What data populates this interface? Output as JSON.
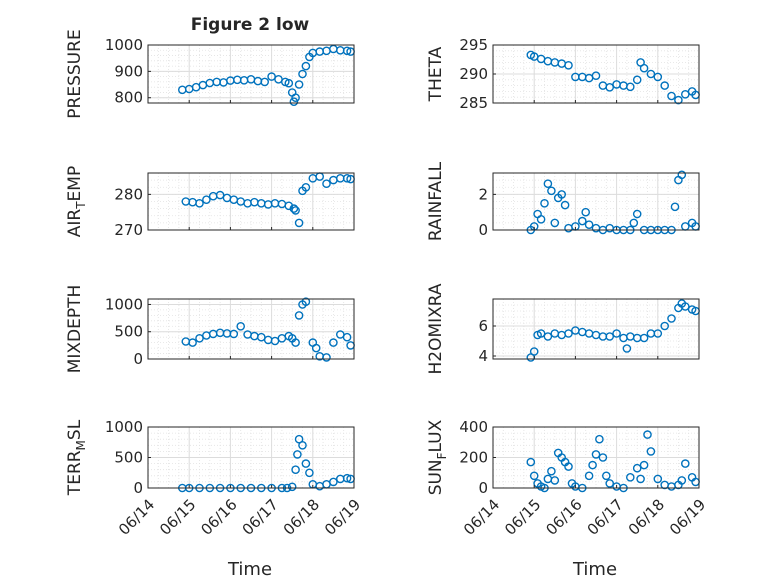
{
  "figure": {
    "title": "Figure 2 low",
    "xlabel": "Time",
    "date_ticks": [
      "06/14",
      "06/15",
      "06/16",
      "06/17",
      "06/18",
      "06/19"
    ]
  },
  "chart_data": [
    {
      "type": "scatter",
      "ylabel": "PRESSURE",
      "ylim": [
        780,
        1000
      ],
      "yticks": [
        800,
        900,
        1000
      ],
      "grid": true,
      "xlim": [
        "2021-06-14",
        "2021-06-19"
      ],
      "x": [
        "06-14 20:00",
        "06-15 00:00",
        "06-15 04:00",
        "06-15 08:00",
        "06-15 12:00",
        "06-15 16:00",
        "06-15 20:00",
        "06-16 00:00",
        "06-16 04:00",
        "06-16 08:00",
        "06-16 12:00",
        "06-16 16:00",
        "06-16 20:00",
        "06-17 00:00",
        "06-17 04:00",
        "06-17 08:00",
        "06-17 10:00",
        "06-17 12:00",
        "06-17 13:00",
        "06-17 14:00",
        "06-17 16:00",
        "06-17 18:00",
        "06-17 20:00",
        "06-17 22:00",
        "06-18 00:00",
        "06-18 04:00",
        "06-18 08:00",
        "06-18 12:00",
        "06-18 16:00",
        "06-18 20:00",
        "06-18 22:00"
      ],
      "y": [
        830,
        833,
        840,
        848,
        856,
        860,
        858,
        865,
        868,
        866,
        870,
        863,
        860,
        880,
        870,
        860,
        855,
        820,
        785,
        800,
        850,
        890,
        920,
        955,
        970,
        975,
        978,
        985,
        980,
        978,
        975
      ]
    },
    {
      "type": "scatter",
      "ylabel": "THETA",
      "ylim": [
        285,
        295
      ],
      "yticks": [
        285,
        290,
        295
      ],
      "grid": true,
      "x": [
        "06-14 22:00",
        "06-15 00:00",
        "06-15 04:00",
        "06-15 08:00",
        "06-15 12:00",
        "06-15 16:00",
        "06-15 20:00",
        "06-16 00:00",
        "06-16 04:00",
        "06-16 08:00",
        "06-16 12:00",
        "06-16 16:00",
        "06-16 20:00",
        "06-17 00:00",
        "06-17 04:00",
        "06-17 08:00",
        "06-17 12:00",
        "06-17 14:00",
        "06-17 16:00",
        "06-17 20:00",
        "06-18 00:00",
        "06-18 04:00",
        "06-18 08:00",
        "06-18 12:00",
        "06-18 16:00",
        "06-18 20:00",
        "06-18 22:00"
      ],
      "y": [
        293.3,
        293,
        292.6,
        292.2,
        292,
        291.8,
        291.5,
        289.5,
        289.5,
        289.3,
        289.7,
        288,
        287.7,
        288.2,
        288,
        287.8,
        289,
        292,
        291,
        290,
        289.5,
        288,
        286.2,
        285.5,
        286.5,
        287,
        286.4
      ]
    },
    {
      "type": "scatter",
      "ylabel": "AIR",
      "ylabel_sub": "T",
      "ylabel_tail": "EMP",
      "ylim": [
        270,
        286
      ],
      "yticks": [
        270,
        280
      ],
      "grid": true,
      "x": [
        "06-14 22:00",
        "06-15 02:00",
        "06-15 06:00",
        "06-15 10:00",
        "06-15 14:00",
        "06-15 18:00",
        "06-15 22:00",
        "06-16 02:00",
        "06-16 06:00",
        "06-16 10:00",
        "06-16 14:00",
        "06-16 18:00",
        "06-16 22:00",
        "06-17 02:00",
        "06-17 06:00",
        "06-17 10:00",
        "06-17 13:00",
        "06-17 14:00",
        "06-17 16:00",
        "06-17 18:00",
        "06-17 20:00",
        "06-18 00:00",
        "06-18 04:00",
        "06-18 08:00",
        "06-18 12:00",
        "06-18 16:00",
        "06-18 20:00",
        "06-18 22:00"
      ],
      "y": [
        278,
        277.8,
        277.5,
        278.5,
        279.5,
        279.8,
        279,
        278.5,
        278,
        277.5,
        277.8,
        277.5,
        277.2,
        277.5,
        277.3,
        276.8,
        276,
        275.5,
        272,
        281,
        282,
        284.5,
        285,
        283,
        284,
        284.5,
        284.5,
        284.3
      ]
    },
    {
      "type": "scatter",
      "ylabel": "RAINFALL",
      "ylim": [
        0,
        3.2
      ],
      "yticks": [
        0,
        2
      ],
      "grid": true,
      "x": [
        "06-14 22:00",
        "06-15 00:00",
        "06-15 02:00",
        "06-15 04:00",
        "06-15 06:00",
        "06-15 08:00",
        "06-15 10:00",
        "06-15 12:00",
        "06-15 14:00",
        "06-15 16:00",
        "06-15 18:00",
        "06-15 20:00",
        "06-16 00:00",
        "06-16 04:00",
        "06-16 06:00",
        "06-16 08:00",
        "06-16 12:00",
        "06-16 16:00",
        "06-16 20:00",
        "06-17 00:00",
        "06-17 04:00",
        "06-17 08:00",
        "06-17 10:00",
        "06-17 12:00",
        "06-17 16:00",
        "06-17 20:00",
        "06-18 00:00",
        "06-18 04:00",
        "06-18 08:00",
        "06-18 10:00",
        "06-18 12:00",
        "06-18 14:00",
        "06-18 16:00",
        "06-18 20:00",
        "06-18 22:00"
      ],
      "y": [
        0,
        0.2,
        0.9,
        0.6,
        1.5,
        2.6,
        2.2,
        0.4,
        1.8,
        2,
        1.4,
        0.1,
        0.2,
        0.5,
        1,
        0.3,
        0.1,
        0,
        0.1,
        0,
        0,
        0,
        0.4,
        0.9,
        0,
        0,
        0,
        0,
        0,
        1.3,
        2.8,
        3.1,
        0.2,
        0.4,
        0.2
      ]
    },
    {
      "type": "scatter",
      "ylabel": "MIXDEPTH",
      "ylim": [
        0,
        1100
      ],
      "yticks": [
        0,
        500,
        1000
      ],
      "grid": true,
      "x": [
        "06-14 22:00",
        "06-15 02:00",
        "06-15 06:00",
        "06-15 10:00",
        "06-15 14:00",
        "06-15 18:00",
        "06-15 22:00",
        "06-16 02:00",
        "06-16 06:00",
        "06-16 10:00",
        "06-16 14:00",
        "06-16 18:00",
        "06-16 22:00",
        "06-17 02:00",
        "06-17 06:00",
        "06-17 10:00",
        "06-17 12:00",
        "06-17 14:00",
        "06-17 16:00",
        "06-17 18:00",
        "06-17 20:00",
        "06-18 00:00",
        "06-18 02:00",
        "06-18 04:00",
        "06-18 08:00",
        "06-18 12:00",
        "06-18 16:00",
        "06-18 20:00",
        "06-18 22:00"
      ],
      "y": [
        320,
        300,
        380,
        430,
        460,
        480,
        470,
        460,
        600,
        450,
        420,
        400,
        350,
        330,
        380,
        420,
        380,
        300,
        800,
        1000,
        1050,
        300,
        200,
        50,
        30,
        300,
        450,
        400,
        250
      ]
    },
    {
      "type": "scatter",
      "ylabel": "H2OMIXRA",
      "ylim": [
        3.8,
        7.8
      ],
      "yticks": [
        4,
        6
      ],
      "grid": true,
      "x": [
        "06-14 22:00",
        "06-15 00:00",
        "06-15 02:00",
        "06-15 04:00",
        "06-15 08:00",
        "06-15 12:00",
        "06-15 16:00",
        "06-15 20:00",
        "06-16 00:00",
        "06-16 04:00",
        "06-16 08:00",
        "06-16 12:00",
        "06-16 16:00",
        "06-16 20:00",
        "06-17 00:00",
        "06-17 04:00",
        "06-17 06:00",
        "06-17 08:00",
        "06-17 12:00",
        "06-17 16:00",
        "06-17 20:00",
        "06-18 00:00",
        "06-18 04:00",
        "06-18 08:00",
        "06-18 12:00",
        "06-18 14:00",
        "06-18 16:00",
        "06-18 20:00",
        "06-18 22:00"
      ],
      "y": [
        3.9,
        4.3,
        5.4,
        5.5,
        5.3,
        5.5,
        5.4,
        5.5,
        5.7,
        5.6,
        5.5,
        5.4,
        5.3,
        5.3,
        5.5,
        5.2,
        4.5,
        5.3,
        5.2,
        5.2,
        5.5,
        5.5,
        6,
        6.5,
        7.2,
        7.5,
        7.3,
        7.1,
        7
      ]
    },
    {
      "type": "scatter",
      "ylabel": "TERR",
      "ylabel_sub": "M",
      "ylabel_tail": "SL",
      "ylim": [
        0,
        1000
      ],
      "yticks": [
        0,
        500,
        1000
      ],
      "grid": true,
      "x": [
        "06-14 20:00",
        "06-15 00:00",
        "06-15 06:00",
        "06-15 12:00",
        "06-15 18:00",
        "06-16 00:00",
        "06-16 06:00",
        "06-16 12:00",
        "06-16 18:00",
        "06-17 00:00",
        "06-17 06:00",
        "06-17 09:00",
        "06-17 12:00",
        "06-17 14:00",
        "06-17 15:00",
        "06-17 16:00",
        "06-17 18:00",
        "06-17 20:00",
        "06-17 22:00",
        "06-18 00:00",
        "06-18 04:00",
        "06-18 08:00",
        "06-18 12:00",
        "06-18 16:00",
        "06-18 20:00",
        "06-18 22:00"
      ],
      "y": [
        0,
        0,
        0,
        0,
        0,
        0,
        0,
        0,
        0,
        0,
        0,
        0,
        20,
        300,
        550,
        800,
        700,
        400,
        250,
        60,
        30,
        60,
        100,
        150,
        160,
        150
      ]
    },
    {
      "type": "scatter",
      "ylabel": "SUN",
      "ylabel_sub": "F",
      "ylabel_tail": "LUX",
      "ylim": [
        0,
        400
      ],
      "yticks": [
        0,
        200,
        400
      ],
      "grid": true,
      "x": [
        "06-14 22:00",
        "06-15 00:00",
        "06-15 02:00",
        "06-15 04:00",
        "06-15 06:00",
        "06-15 08:00",
        "06-15 10:00",
        "06-15 12:00",
        "06-15 14:00",
        "06-15 16:00",
        "06-15 18:00",
        "06-15 20:00",
        "06-15 22:00",
        "06-16 00:00",
        "06-16 04:00",
        "06-16 08:00",
        "06-16 10:00",
        "06-16 12:00",
        "06-16 14:00",
        "06-16 16:00",
        "06-16 18:00",
        "06-16 20:00",
        "06-17 00:00",
        "06-17 04:00",
        "06-17 08:00",
        "06-17 12:00",
        "06-17 14:00",
        "06-17 16:00",
        "06-17 18:00",
        "06-17 20:00",
        "06-18 00:00",
        "06-18 04:00",
        "06-18 08:00",
        "06-18 12:00",
        "06-18 14:00",
        "06-18 16:00",
        "06-18 20:00",
        "06-18 22:00"
      ],
      "y": [
        170,
        80,
        30,
        10,
        0,
        60,
        110,
        50,
        230,
        200,
        170,
        140,
        30,
        10,
        0,
        80,
        150,
        220,
        320,
        200,
        80,
        30,
        10,
        0,
        70,
        130,
        60,
        150,
        350,
        240,
        60,
        20,
        10,
        20,
        50,
        160,
        70,
        40
      ]
    }
  ]
}
